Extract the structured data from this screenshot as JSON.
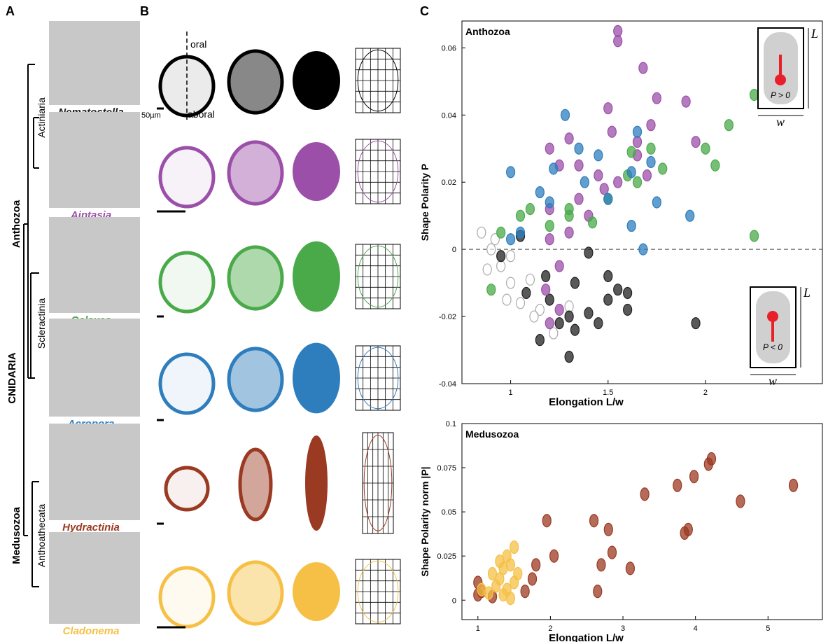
{
  "panel_labels": [
    "A",
    "B",
    "C"
  ],
  "taxonomy": {
    "phylum": "CNIDARIA",
    "classes": [
      "Anthozoa",
      "Medusozoa"
    ],
    "orders": [
      "Actiniaria",
      "Scleractinia",
      "Anthoathecata"
    ]
  },
  "panel_b": {
    "oral": "oral",
    "aboral": "aboral",
    "scale": "50µm"
  },
  "species": [
    {
      "name": "Nematostella",
      "color": "#000000"
    },
    {
      "name": "Aiptasia",
      "color": "#9b4fa8"
    },
    {
      "name": "Galaxea",
      "color": "#4aaa4a"
    },
    {
      "name": "Acropora",
      "color": "#2e7dbd"
    },
    {
      "name": "Hydractinia",
      "color": "#9b3a22"
    },
    {
      "name": "Cladonema",
      "color": "#f6c046"
    }
  ],
  "chart_data": [
    {
      "type": "scatter",
      "title": "Anthozoa",
      "x_label": "Elongation L/w",
      "y_label": "Shape Polarity P",
      "xlim": [
        0.75,
        2.6
      ],
      "ylim": [
        -0.04,
        0.068
      ],
      "xticks": [
        1,
        1.5,
        2
      ],
      "yticks": [
        -0.04,
        -0.02,
        0,
        0.02,
        0.04,
        0.06
      ],
      "reference_line": 0,
      "annotations": [
        "P > 0",
        "P < 0",
        "L",
        "w"
      ],
      "series": [
        {
          "color": "#aaaaaa",
          "filled": false,
          "x": [
            0.85,
            0.9,
            0.88,
            1.0,
            0.95,
            1.05,
            1.1,
            1.15,
            0.92,
            1.0,
            1.12,
            1.22,
            1.3,
            0.98
          ],
          "values": [
            0.005,
            0.0,
            -0.006,
            -0.01,
            -0.005,
            -0.016,
            -0.009,
            -0.018,
            0.003,
            -0.002,
            -0.02,
            -0.025,
            -0.017,
            -0.015
          ]
        },
        {
          "color": "#222222",
          "filled": true,
          "x": [
            1.3,
            1.15,
            1.25,
            1.33,
            1.45,
            1.5,
            1.55,
            1.6,
            1.95,
            1.08,
            1.2,
            1.3,
            1.4,
            1.5,
            0.95,
            1.05,
            1.18,
            1.33,
            1.4,
            1.6
          ],
          "values": [
            -0.032,
            -0.027,
            -0.022,
            -0.024,
            -0.022,
            -0.015,
            -0.012,
            -0.013,
            -0.022,
            -0.013,
            -0.015,
            -0.02,
            -0.019,
            -0.008,
            -0.002,
            0.004,
            -0.008,
            -0.01,
            -0.001,
            -0.018
          ]
        },
        {
          "color": "#9b4fa8",
          "filled": true,
          "x": [
            1.55,
            1.55,
            1.68,
            1.75,
            1.9,
            1.5,
            1.52,
            1.65,
            1.72,
            1.95,
            1.3,
            1.2,
            1.25,
            1.35,
            1.45,
            1.55,
            1.7,
            1.35,
            1.4,
            1.2,
            1.2,
            1.25,
            1.18,
            1.25,
            1.2,
            1.3,
            1.65,
            1.48
          ],
          "values": [
            0.065,
            0.062,
            0.054,
            0.045,
            0.044,
            0.042,
            0.035,
            0.032,
            0.037,
            0.032,
            0.033,
            0.03,
            0.025,
            0.025,
            0.022,
            0.02,
            0.022,
            0.015,
            0.01,
            0.012,
            0.003,
            -0.005,
            -0.012,
            -0.018,
            -0.022,
            0.005,
            0.028,
            0.018
          ]
        },
        {
          "color": "#4aaa4a",
          "filled": true,
          "x": [
            2.25,
            2.12,
            2.05,
            2.0,
            1.78,
            1.62,
            1.72,
            1.65,
            1.5,
            1.42,
            1.3,
            1.2,
            1.1,
            1.05,
            0.95,
            2.25,
            0.9,
            1.3,
            1.6
          ],
          "values": [
            0.046,
            0.037,
            0.025,
            0.03,
            0.024,
            0.029,
            0.03,
            0.02,
            0.015,
            0.008,
            0.01,
            0.007,
            0.012,
            0.01,
            0.005,
            0.004,
            -0.012,
            0.012,
            0.022
          ]
        },
        {
          "color": "#2e7dbd",
          "filled": true,
          "x": [
            1.28,
            1.65,
            1.72,
            1.62,
            1.45,
            1.35,
            1.22,
            1.0,
            1.15,
            1.2,
            1.75,
            1.92,
            1.62,
            1.68,
            1.38,
            1.5,
            1.05,
            1.0
          ],
          "values": [
            0.04,
            0.035,
            0.026,
            0.023,
            0.028,
            0.03,
            0.024,
            0.023,
            0.017,
            0.014,
            0.014,
            0.01,
            0.007,
            0.0,
            0.02,
            0.015,
            0.005,
            0.003
          ]
        }
      ]
    },
    {
      "type": "scatter",
      "title": "Medusozoa",
      "x_label": "Elongation L/w",
      "y_label": "Shape Polarity norm |P|",
      "xlim": [
        0.78,
        5.75
      ],
      "ylim": [
        -0.011,
        0.1
      ],
      "xticks": [
        1,
        2,
        3,
        4,
        5
      ],
      "yticks": [
        0,
        0.025,
        0.05,
        0.075,
        0.1
      ],
      "series": [
        {
          "color": "#9b3a22",
          "filled": true,
          "x": [
            5.35,
            4.22,
            4.18,
            3.98,
            3.75,
            3.3,
            4.62,
            3.9,
            3.85,
            2.6,
            2.8,
            2.85,
            3.1,
            2.7,
            2.65,
            1.95,
            2.05,
            1.8,
            1.75,
            1.65,
            1.0,
            1.05,
            1.0,
            1.2
          ],
          "values": [
            0.065,
            0.08,
            0.077,
            0.07,
            0.065,
            0.06,
            0.056,
            0.04,
            0.038,
            0.045,
            0.04,
            0.027,
            0.018,
            0.02,
            0.005,
            0.045,
            0.025,
            0.02,
            0.012,
            0.005,
            0.003,
            0.005,
            0.01,
            0.002
          ]
        },
        {
          "color": "#f6c046",
          "filled": true,
          "x": [
            1.5,
            1.4,
            1.35,
            1.45,
            1.3,
            1.25,
            1.4,
            1.5,
            1.55,
            1.15,
            1.2,
            1.35,
            1.05,
            1.45,
            1.3
          ],
          "values": [
            0.03,
            0.025,
            0.018,
            0.02,
            0.012,
            0.008,
            0.006,
            0.01,
            0.015,
            0.004,
            0.015,
            0.003,
            0.006,
            0.001,
            0.022
          ]
        }
      ]
    }
  ]
}
